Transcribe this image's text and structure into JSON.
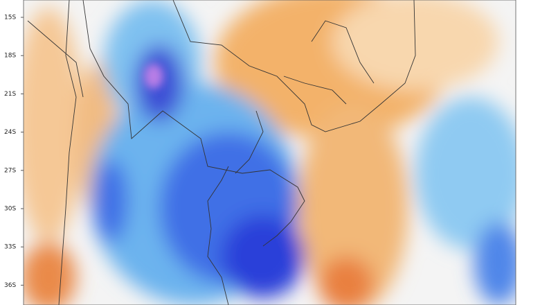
{
  "map": {
    "latitude_labels": [
      "15S",
      "18S",
      "21S",
      "24S",
      "27S",
      "30S",
      "33S",
      "36S"
    ]
  }
}
